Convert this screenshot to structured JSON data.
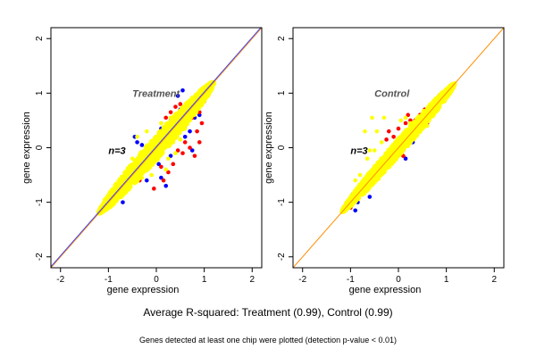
{
  "chart_data": [
    {
      "type": "scatter",
      "panel_label": "Treatment",
      "n_label": "n=3",
      "xlabel": "gene expression",
      "ylabel": "gene expression",
      "xlim": [
        -2.2,
        2.2
      ],
      "ylim": [
        -2.2,
        2.2
      ],
      "xticks": [
        -2,
        -1,
        0,
        1,
        2
      ],
      "yticks": [
        -2,
        -1,
        0,
        1,
        2
      ],
      "reference_lines": [
        {
          "type": "diagonal",
          "slope": 1.0,
          "intercept": 0.0,
          "color": "#ff8c00"
        },
        {
          "type": "diagonal",
          "slope": 1.0,
          "intercept": 0.02,
          "color": "#4444ff"
        }
      ],
      "series": [
        {
          "color": "#0000ff",
          "points": [
            [
              -1.05,
              -1.1
            ],
            [
              -0.8,
              -0.85
            ],
            [
              -0.6,
              -0.5
            ],
            [
              -0.4,
              -0.45
            ],
            [
              -0.3,
              0.05
            ],
            [
              -0.2,
              -0.1
            ],
            [
              -0.1,
              -0.05
            ],
            [
              0.0,
              0.2
            ],
            [
              0.1,
              0.35
            ],
            [
              0.2,
              0.3
            ],
            [
              0.3,
              0.5
            ],
            [
              0.4,
              0.55
            ],
            [
              0.5,
              0.7
            ],
            [
              0.6,
              0.65
            ],
            [
              0.7,
              0.85
            ],
            [
              0.8,
              0.8
            ],
            [
              0.9,
              1.0
            ],
            [
              1.0,
              1.05
            ],
            [
              1.1,
              1.15
            ],
            [
              -0.45,
              0.2
            ],
            [
              -0.4,
              0.1
            ],
            [
              0.6,
              0.2
            ],
            [
              0.7,
              0.3
            ],
            [
              0.75,
              -0.05
            ],
            [
              0.05,
              -0.3
            ],
            [
              -0.2,
              -0.6
            ],
            [
              0.1,
              -0.55
            ],
            [
              0.2,
              -0.7
            ],
            [
              -0.7,
              -1.0
            ],
            [
              0.3,
              -0.15
            ],
            [
              0.45,
              0.95
            ],
            [
              0.55,
              1.05
            ],
            [
              0.8,
              0.55
            ],
            [
              0.9,
              0.6
            ]
          ]
        },
        {
          "color": "#ff0000",
          "points": [
            [
              -0.9,
              -0.95
            ],
            [
              -0.7,
              -0.6
            ],
            [
              -0.5,
              -0.55
            ],
            [
              -0.3,
              -0.25
            ],
            [
              -0.1,
              -0.3
            ],
            [
              0.0,
              0.05
            ],
            [
              0.15,
              0.05
            ],
            [
              0.25,
              0.1
            ],
            [
              0.35,
              0.2
            ],
            [
              0.45,
              0.3
            ],
            [
              0.5,
              0.45
            ],
            [
              0.6,
              0.4
            ],
            [
              0.65,
              0.6
            ],
            [
              0.75,
              0.55
            ],
            [
              0.85,
              0.75
            ],
            [
              0.9,
              0.65
            ],
            [
              1.0,
              0.85
            ],
            [
              1.05,
              0.95
            ],
            [
              0.95,
              0.45
            ],
            [
              0.85,
              0.3
            ],
            [
              0.55,
              -0.1
            ],
            [
              0.45,
              -0.05
            ],
            [
              0.35,
              -0.3
            ],
            [
              0.25,
              -0.45
            ],
            [
              0.1,
              -0.35
            ],
            [
              -0.15,
              -0.2
            ],
            [
              -0.25,
              -0.15
            ],
            [
              -0.35,
              -0.6
            ],
            [
              -0.05,
              -0.75
            ],
            [
              0.15,
              -0.6
            ],
            [
              0.6,
              0.1
            ],
            [
              0.7,
              0.0
            ],
            [
              0.8,
              -0.15
            ],
            [
              0.9,
              0.1
            ],
            [
              0.2,
              0.55
            ],
            [
              0.3,
              0.65
            ],
            [
              0.5,
              0.8
            ],
            [
              0.4,
              0.75
            ]
          ]
        },
        {
          "color": "#ffff00",
          "ellipse": {
            "center": [
              0.0,
              0.0
            ],
            "half_length": 1.2,
            "half_width": 0.17
          }
        },
        {
          "color": "#ffff00",
          "points": [
            [
              -0.4,
              0.2
            ],
            [
              -0.2,
              0.3
            ],
            [
              0.1,
              0.45
            ],
            [
              0.3,
              0.55
            ],
            [
              0.2,
              -0.4
            ],
            [
              0.4,
              -0.1
            ],
            [
              -0.1,
              -0.5
            ],
            [
              0.5,
              0.15
            ],
            [
              -0.3,
              -0.55
            ],
            [
              0.6,
              0.35
            ],
            [
              0.05,
              0.25
            ],
            [
              0.25,
              -0.2
            ],
            [
              -0.5,
              -0.2
            ],
            [
              0.35,
              0.1
            ]
          ]
        }
      ]
    },
    {
      "type": "scatter",
      "panel_label": "Control",
      "n_label": "n=3",
      "xlabel": "gene expression",
      "ylabel": "gene expression",
      "xlim": [
        -2.2,
        2.2
      ],
      "ylim": [
        -2.2,
        2.2
      ],
      "xticks": [
        -2,
        -1,
        0,
        1,
        2
      ],
      "yticks": [
        -2,
        -1,
        0,
        1,
        2
      ],
      "reference_lines": [
        {
          "type": "diagonal",
          "slope": 1.0,
          "intercept": 0.0,
          "color": "#ff8c00"
        }
      ],
      "series": [
        {
          "color": "#0000ff",
          "points": [
            [
              -1.1,
              -1.05
            ],
            [
              -0.95,
              -0.85
            ],
            [
              -0.85,
              -1.0
            ],
            [
              -0.7,
              -0.75
            ],
            [
              -0.55,
              -0.65
            ],
            [
              -0.45,
              -0.35
            ],
            [
              -0.3,
              -0.45
            ],
            [
              -0.2,
              -0.15
            ],
            [
              0.1,
              -0.05
            ],
            [
              0.2,
              0.25
            ],
            [
              0.3,
              0.1
            ],
            [
              0.45,
              0.35
            ],
            [
              0.6,
              0.5
            ],
            [
              0.7,
              0.6
            ],
            [
              0.9,
              0.85
            ],
            [
              1.0,
              0.95
            ],
            [
              -0.9,
              -1.15
            ],
            [
              -0.6,
              -0.9
            ],
            [
              0.35,
              0.4
            ],
            [
              0.15,
              -0.2
            ]
          ]
        },
        {
          "color": "#ff0000",
          "points": [
            [
              -1.0,
              -1.1
            ],
            [
              -0.8,
              -0.7
            ],
            [
              -0.65,
              -0.55
            ],
            [
              -0.5,
              -0.6
            ],
            [
              -0.35,
              -0.2
            ],
            [
              -0.25,
              0.15
            ],
            [
              -0.2,
              0.3
            ],
            [
              -0.1,
              0.2
            ],
            [
              0.0,
              0.35
            ],
            [
              0.05,
              0.1
            ],
            [
              0.15,
              0.45
            ],
            [
              0.25,
              0.5
            ],
            [
              0.35,
              0.5
            ],
            [
              0.45,
              0.6
            ],
            [
              0.55,
              0.7
            ],
            [
              0.75,
              0.75
            ],
            [
              0.85,
              0.95
            ],
            [
              -0.45,
              -0.5
            ],
            [
              0.1,
              -0.15
            ],
            [
              0.3,
              0.2
            ],
            [
              -0.15,
              -0.25
            ],
            [
              0.6,
              0.45
            ],
            [
              0.2,
              0.6
            ]
          ]
        },
        {
          "color": "#ffff00",
          "ellipse": {
            "center": [
              0.0,
              0.0
            ],
            "half_length": 1.18,
            "half_width": 0.12
          }
        },
        {
          "color": "#ffff00",
          "points": [
            [
              -0.55,
              0.55
            ],
            [
              -0.7,
              0.3
            ],
            [
              -0.45,
              0.3
            ],
            [
              -0.3,
              0.55
            ],
            [
              0.05,
              0.5
            ],
            [
              0.15,
              0.55
            ],
            [
              0.45,
              0.55
            ],
            [
              0.6,
              0.4
            ],
            [
              -0.8,
              -0.5
            ],
            [
              -0.65,
              -0.2
            ],
            [
              -0.5,
              -0.05
            ],
            [
              -0.35,
              0.1
            ],
            [
              0.25,
              0.45
            ],
            [
              -0.9,
              -0.6
            ],
            [
              -0.6,
              -0.05
            ]
          ]
        }
      ]
    }
  ],
  "captions": {
    "main": "Average R-squared: Treatment (0.99), Control (0.99)",
    "note": "Genes detected at least one chip were plotted (detection p-value < 0.01)"
  }
}
